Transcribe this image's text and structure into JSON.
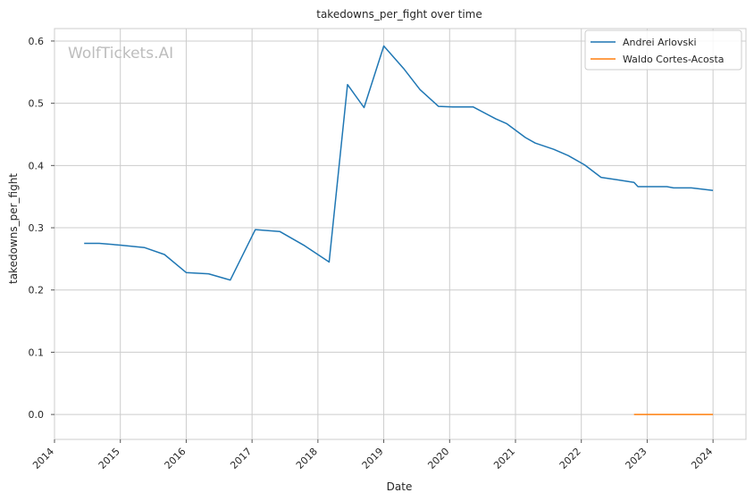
{
  "chart_data": {
    "type": "line",
    "title": "takedowns_per_fight over time",
    "xlabel": "Date",
    "ylabel": "takedowns_per_fight",
    "watermark": "WolfTickets.AI",
    "xlim": [
      2014.0,
      2024.5
    ],
    "ylim": [
      -0.04,
      0.62
    ],
    "x_ticks": [
      2014,
      2015,
      2016,
      2017,
      2018,
      2019,
      2020,
      2021,
      2022,
      2023,
      2024
    ],
    "x_tick_labels": [
      "2014",
      "2015",
      "2016",
      "2017",
      "2018",
      "2019",
      "2020",
      "2021",
      "2022",
      "2023",
      "2024"
    ],
    "y_ticks": [
      0.0,
      0.1,
      0.2,
      0.3,
      0.4,
      0.5,
      0.6
    ],
    "y_tick_labels": [
      "0.0",
      "0.1",
      "0.2",
      "0.3",
      "0.4",
      "0.5",
      "0.6"
    ],
    "grid": true,
    "legend_position": "top-right",
    "series": [
      {
        "name": "Andrei Arlovski",
        "color": "#1f77b4",
        "x": [
          2014.45,
          2014.68,
          2015.0,
          2015.37,
          2015.67,
          2016.0,
          2016.34,
          2016.67,
          2017.05,
          2017.42,
          2017.8,
          2018.17,
          2018.45,
          2018.7,
          2019.0,
          2019.3,
          2019.55,
          2019.83,
          2020.05,
          2020.36,
          2020.7,
          2020.87,
          2021.15,
          2021.3,
          2021.58,
          2021.8,
          2022.05,
          2022.3,
          2022.55,
          2022.8,
          2022.86,
          2023.05,
          2023.3,
          2023.4,
          2023.67,
          2024.0
        ],
        "y": [
          0.275,
          0.275,
          0.272,
          0.268,
          0.257,
          0.228,
          0.226,
          0.216,
          0.297,
          0.294,
          0.271,
          0.245,
          0.53,
          0.493,
          0.592,
          0.556,
          0.522,
          0.495,
          0.494,
          0.494,
          0.475,
          0.467,
          0.445,
          0.436,
          0.426,
          0.416,
          0.401,
          0.381,
          0.377,
          0.373,
          0.366,
          0.366,
          0.366,
          0.364,
          0.364,
          0.36
        ]
      },
      {
        "name": "Waldo Cortes-Acosta",
        "color": "#ff7f0e",
        "x": [
          2022.8,
          2023.05,
          2023.4,
          2023.7,
          2024.0
        ],
        "y": [
          0.0,
          0.0,
          0.0,
          0.0,
          0.0
        ]
      }
    ]
  }
}
